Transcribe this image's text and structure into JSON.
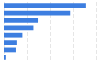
{
  "chart_data": {
    "type": "bar",
    "orientation": "horizontal",
    "categories": [
      null,
      null,
      null,
      null,
      null,
      null,
      null,
      null
    ],
    "values": [
      89,
      72,
      37,
      32,
      20,
      14,
      13,
      2
    ],
    "color": "#3d7ee0",
    "xlim": [
      0,
      100
    ],
    "xticks": [
      0,
      25,
      50,
      75,
      100
    ],
    "grid": true,
    "tick_labels": false
  }
}
